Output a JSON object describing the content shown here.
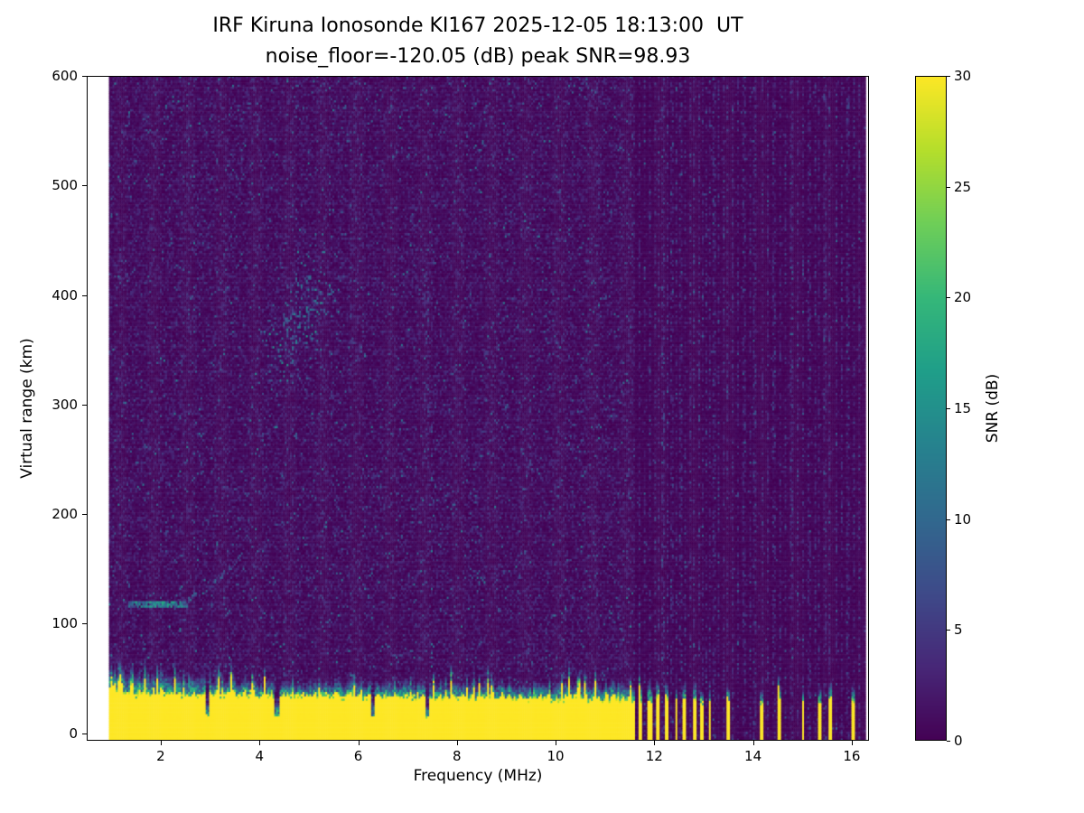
{
  "chart_data": {
    "type": "heatmap",
    "title": "IRF Kiruna Ionosonde KI167 2025-12-05 18:13:00  UT",
    "subtitle": "noise_floor=-120.05 (dB) peak SNR=98.93",
    "xlabel": "Frequency (MHz)",
    "ylabel": "Virtual range (km)",
    "xlim": [
      0.5,
      16.35
    ],
    "ylim": [
      -7,
      600
    ],
    "x_ticks": [
      2,
      4,
      6,
      8,
      10,
      12,
      14,
      16
    ],
    "y_ticks": [
      0,
      100,
      200,
      300,
      400,
      500,
      600
    ],
    "colorbar": {
      "label": "SNR (dB)",
      "min": 0,
      "max": 30,
      "ticks": [
        0,
        5,
        10,
        15,
        20,
        25,
        30
      ],
      "colormap": "viridis"
    },
    "data_extent": {
      "freq_mhz": [
        0.95,
        16.28
      ],
      "range_km": [
        -7,
        600
      ]
    },
    "noise_floor_db": -120.05,
    "peak_snr_db": 98.93,
    "features": {
      "ground_band": {
        "description": "saturated transmit/ground return, SNR ~30 dB from 0 km up to ragged top edge",
        "range_km": [
          0,
          38
        ],
        "top_edge_km_mean": 32,
        "transition_km": 12,
        "snr_db": 30,
        "full_band_freq_mhz": [
          0.95,
          11.62
        ],
        "notches_mhz": [
          2.95,
          4.35,
          6.3,
          7.4
        ],
        "stripe_segments_mhz": [
          [
            11.67,
            11.76
          ],
          [
            11.87,
            11.95
          ],
          [
            12.05,
            12.12
          ],
          [
            12.23,
            12.3
          ],
          [
            12.42,
            12.48
          ],
          [
            12.59,
            12.66
          ],
          [
            12.78,
            12.84
          ],
          [
            12.94,
            13.0
          ],
          [
            13.09,
            13.15
          ],
          [
            13.45,
            13.53
          ],
          [
            14.15,
            14.23
          ],
          [
            14.5,
            14.58
          ],
          [
            14.99,
            15.04
          ],
          [
            15.3,
            15.38
          ],
          [
            15.52,
            15.6
          ],
          [
            16.0,
            16.08
          ]
        ]
      },
      "e_layer_trace": {
        "description": "thin sporadic-E echo near 115-160 km",
        "freq_mhz": [
          1.35,
          3.7
        ],
        "range_km_start": 117,
        "range_km_end": 160,
        "bright_freq_mhz": [
          1.5,
          2.45
        ],
        "snr_db": [
          4,
          18
        ]
      },
      "f_region_scatter": {
        "description": "diagonal F-region echo patch rising with frequency",
        "freq_mhz": [
          3.85,
          5.7
        ],
        "range_km": [
          320,
          440
        ],
        "slope_km_per_mhz": 50,
        "peak_freq_mhz": 4.85,
        "snr_db": [
          3,
          16
        ]
      },
      "extra_scatter_column": {
        "freq_mhz": 7.38,
        "range_km": [
          250,
          430
        ],
        "snr_db": [
          3,
          8
        ]
      },
      "rfi_stripes": {
        "description": "vertical interference/dropout striping above 11.62 MHz",
        "region_start_mhz": 11.62,
        "line_freqs_mhz": [
          11.71,
          11.81,
          11.91,
          12.01,
          12.09,
          12.18,
          12.27,
          12.36,
          12.45,
          12.54,
          12.63,
          12.72,
          12.81,
          12.9,
          12.97,
          13.06,
          13.12,
          13.21,
          13.3,
          13.42,
          13.49,
          13.58,
          13.7,
          13.82,
          13.94,
          14.03,
          14.19,
          14.31,
          14.43,
          14.54,
          14.66,
          14.78,
          14.9,
          15.02,
          15.14,
          15.26,
          15.34,
          15.46,
          15.56,
          15.68,
          15.8,
          15.92,
          16.04,
          16.16
        ],
        "snr_db": [
          2,
          9
        ]
      },
      "noise_speckle": {
        "typical_db": [
          0,
          4
        ],
        "sparse_teal_db": [
          4,
          13
        ],
        "density_left_region": 0.3,
        "density_right_region": 0.05
      }
    },
    "render": {
      "seed": 1337,
      "cols": 430,
      "rows": 300
    }
  }
}
